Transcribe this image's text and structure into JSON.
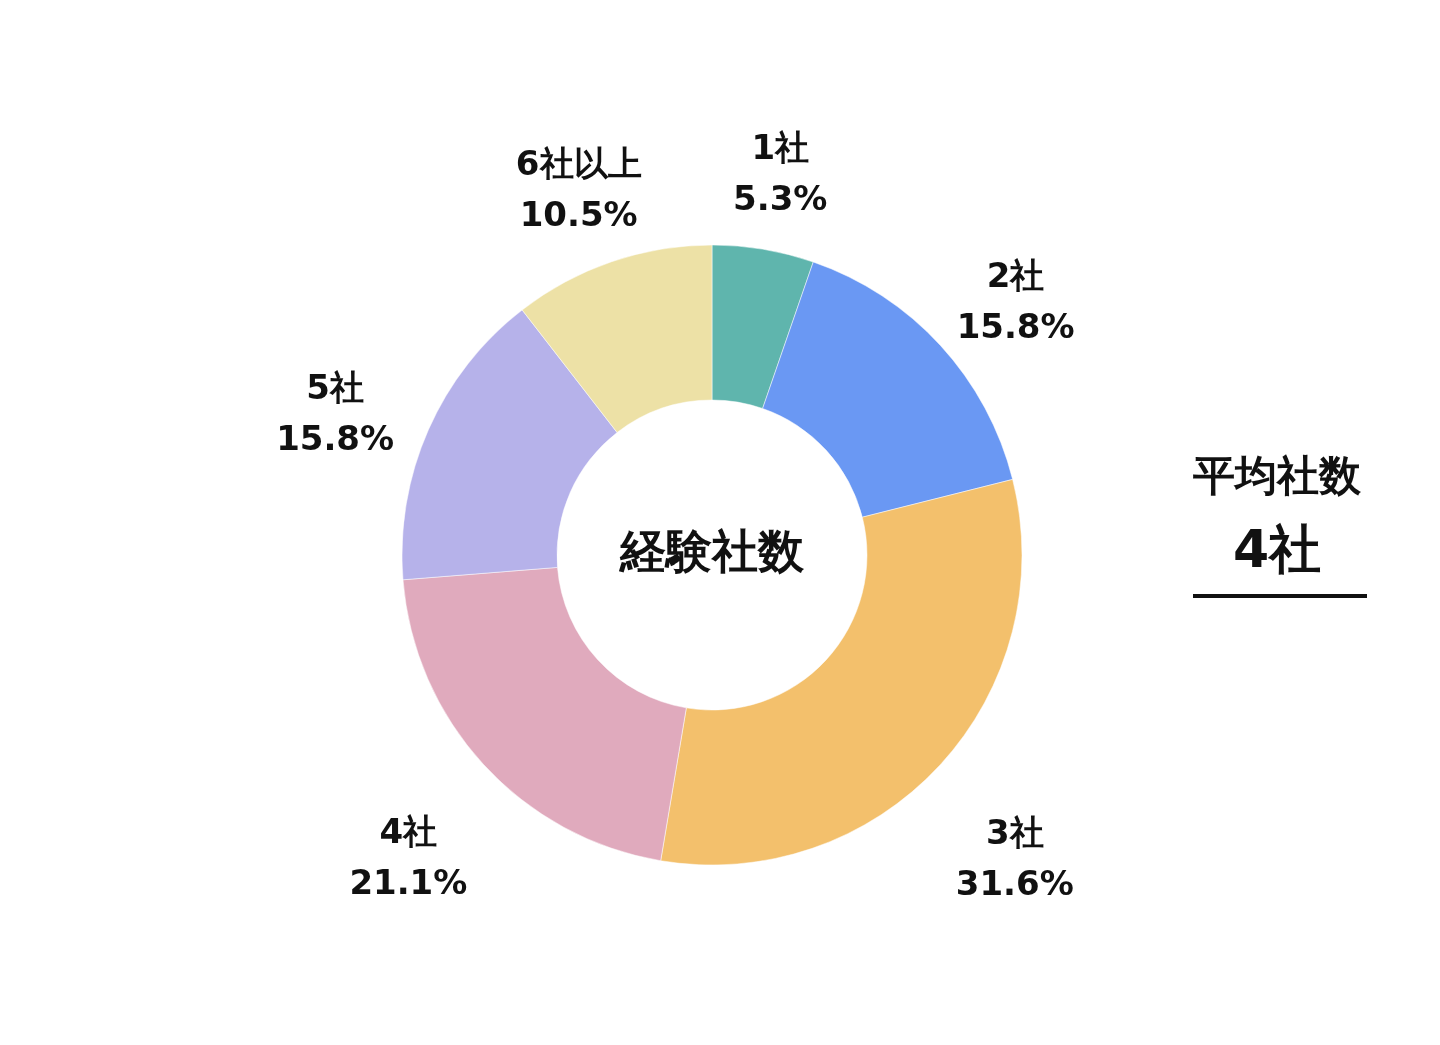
{
  "chart_data": {
    "type": "donut",
    "title": "経験社数",
    "categories": [
      "1社",
      "2社",
      "3社",
      "4社",
      "5社",
      "6社以上"
    ],
    "values": [
      5.3,
      15.8,
      31.6,
      21.1,
      15.8,
      10.5
    ],
    "value_labels": [
      "5.3%",
      "15.8%",
      "31.6%",
      "21.1%",
      "15.8%",
      "10.5%"
    ],
    "colors": [
      "#5fb5ad",
      "#6a98f3",
      "#f3c06c",
      "#e0aabd",
      "#b6b2ea",
      "#ede1a6"
    ],
    "annotations": [
      "平均社数",
      "4社"
    ]
  }
}
